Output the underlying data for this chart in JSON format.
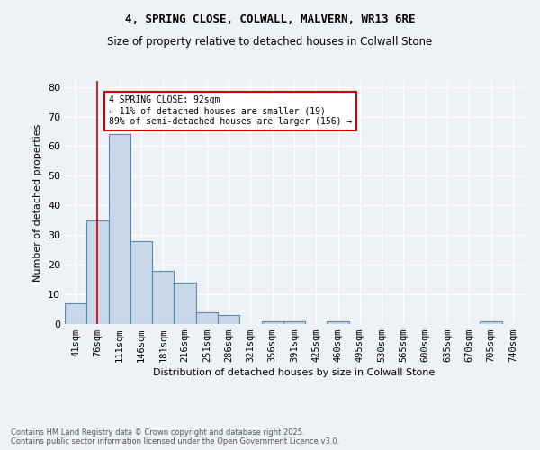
{
  "title1": "4, SPRING CLOSE, COLWALL, MALVERN, WR13 6RE",
  "title2": "Size of property relative to detached houses in Colwall Stone",
  "xlabel": "Distribution of detached houses by size in Colwall Stone",
  "ylabel": "Number of detached properties",
  "bar_labels": [
    "41sqm",
    "76sqm",
    "111sqm",
    "146sqm",
    "181sqm",
    "216sqm",
    "251sqm",
    "286sqm",
    "321sqm",
    "356sqm",
    "391sqm",
    "425sqm",
    "460sqm",
    "495sqm",
    "530sqm",
    "565sqm",
    "600sqm",
    "635sqm",
    "670sqm",
    "705sqm",
    "740sqm"
  ],
  "bar_values": [
    7,
    35,
    64,
    28,
    18,
    14,
    4,
    3,
    0,
    1,
    1,
    0,
    1,
    0,
    0,
    0,
    0,
    0,
    0,
    1,
    0
  ],
  "bar_color": "#c8d8e8",
  "bar_edge_color": "#5a8ab0",
  "ylim": [
    0,
    82
  ],
  "yticks": [
    0,
    10,
    20,
    30,
    40,
    50,
    60,
    70,
    80
  ],
  "vline_x": 1,
  "vline_color": "#cc0000",
  "annotation_text": "4 SPRING CLOSE: 92sqm\n← 11% of detached houses are smaller (19)\n89% of semi-detached houses are larger (156) →",
  "annotation_box_color": "#ffffff",
  "annotation_box_edge": "#cc0000",
  "footer": "Contains HM Land Registry data © Crown copyright and database right 2025.\nContains public sector information licensed under the Open Government Licence v3.0.",
  "bg_color": "#eef2f7",
  "grid_color": "#ffffff"
}
